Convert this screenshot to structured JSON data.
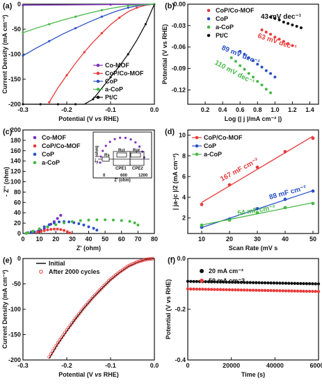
{
  "chart_data": [
    {
      "id": "a",
      "panel_label": "(a)",
      "type": "line",
      "xlabel_parts": [
        "Potential (V ",
        "vs",
        " RHE)"
      ],
      "ylabel": "Current Density (mA cm⁻²)",
      "xlim": [
        -0.3,
        0.0
      ],
      "ylim": [
        -200,
        0
      ],
      "xticks": [
        -0.3,
        -0.2,
        -0.1,
        0.0
      ],
      "xtick_labels": [
        "-0.3",
        "-0.2",
        "-0.1",
        "0.0"
      ],
      "yticks": [
        -200,
        -150,
        -100,
        -50,
        0
      ],
      "ytick_labels": [
        "-200",
        "-150",
        "-100",
        "-50",
        "0"
      ],
      "legend": [
        "Co-MOF",
        "CoP/Co-MOF",
        "CoP",
        "a-CoP",
        "Pt/C"
      ],
      "series": [
        {
          "name": "Co-MOF",
          "color": "#7b2fbf",
          "x": [
            -0.3,
            -0.2,
            -0.1,
            0.0
          ],
          "y": [
            -2,
            -1.5,
            -0.8,
            0
          ]
        },
        {
          "name": "CoP/Co-MOF",
          "color": "#e83a3a",
          "x": [
            -0.24,
            -0.22,
            -0.2,
            -0.18,
            -0.16,
            -0.14,
            -0.12,
            -0.1,
            -0.08,
            -0.06,
            -0.04,
            -0.02,
            0.0
          ],
          "y": [
            -196,
            -167,
            -142,
            -118,
            -96,
            -76,
            -58,
            -41,
            -27,
            -15,
            -7,
            -2,
            0
          ]
        },
        {
          "name": "CoP",
          "color": "#2a50c8",
          "x": [
            -0.3,
            -0.27,
            -0.24,
            -0.21,
            -0.18,
            -0.15,
            -0.12,
            -0.09,
            -0.06,
            -0.03,
            0.0
          ],
          "y": [
            -103,
            -88,
            -74,
            -60,
            -48,
            -36,
            -25,
            -15,
            -7,
            -2,
            0
          ]
        },
        {
          "name": "a-CoP",
          "color": "#45b845",
          "x": [
            -0.3,
            -0.27,
            -0.24,
            -0.21,
            -0.18,
            -0.15,
            -0.12,
            -0.09,
            -0.06,
            -0.03,
            0.0
          ],
          "y": [
            -57,
            -48,
            -40,
            -32,
            -25,
            -18,
            -12,
            -7,
            -3,
            -1,
            0
          ]
        },
        {
          "name": "Pt/C",
          "color": "#111111",
          "x": [
            -0.3,
            -0.28,
            -0.26,
            -0.24,
            -0.22,
            -0.2,
            -0.18,
            -0.16,
            -0.14,
            -0.12,
            -0.1,
            -0.08,
            -0.06,
            -0.04,
            -0.02,
            0.0
          ],
          "y": [
            -200,
            -200,
            -200,
            -200,
            -200,
            -200,
            -200,
            -200,
            -190,
            -168,
            -146,
            -124,
            -100,
            -72,
            -40,
            0
          ]
        }
      ]
    },
    {
      "id": "b",
      "panel_label": "(b)",
      "type": "scatter",
      "xlabel": "Log (| j |/mA cm⁻² |)",
      "ylabel": "Potential (V vs RHE)",
      "xlim": [
        0.0,
        1.5
      ],
      "ylim": [
        -0.14,
        0.0
      ],
      "xticks": [
        0.2,
        0.4,
        0.6,
        0.8,
        1.0,
        1.2,
        1.4
      ],
      "xtick_labels": [
        "0.2",
        "0.4",
        "0.6",
        "0.8",
        "1.0",
        "1.2",
        "1.4"
      ],
      "yticks": [
        -0.12,
        -0.09,
        -0.06,
        -0.03,
        0.0
      ],
      "ytick_labels": [
        "-0.12",
        "-0.09",
        "-0.06",
        "-0.03",
        "0.00"
      ],
      "legend": [
        "CoP/Co-MOF",
        "CoP",
        "a-CoP",
        "Pt/C"
      ],
      "annotations": [
        "43 mV dec⁻¹",
        "63 mV dec⁻¹",
        "89 mV dec⁻¹",
        "110 mV dec⁻¹"
      ],
      "series": [
        {
          "name": "CoP/Co-MOF",
          "color": "#e83a3a",
          "x": [
            0.85,
            0.9,
            0.95,
            1.0,
            1.05,
            1.1,
            1.15,
            1.2
          ],
          "y": [
            -0.036,
            -0.039,
            -0.042,
            -0.046,
            -0.049,
            -0.052,
            -0.055,
            -0.058
          ]
        },
        {
          "name": "CoP",
          "color": "#2a50c8",
          "x": [
            0.6,
            0.65,
            0.7,
            0.75,
            0.8,
            0.85,
            0.9,
            0.95,
            1.0
          ],
          "y": [
            -0.066,
            -0.07,
            -0.075,
            -0.079,
            -0.084,
            -0.088,
            -0.093,
            -0.097,
            -0.102
          ]
        },
        {
          "name": "a-CoP",
          "color": "#45b845",
          "x": [
            0.5,
            0.55,
            0.6,
            0.65,
            0.7,
            0.75,
            0.8,
            0.85,
            0.9,
            0.95
          ],
          "y": [
            -0.075,
            -0.08,
            -0.086,
            -0.091,
            -0.097,
            -0.102,
            -0.108,
            -0.113,
            -0.119,
            -0.124
          ]
        },
        {
          "name": "Pt/C",
          "color": "#111111",
          "x": [
            0.95,
            1.0,
            1.05,
            1.1,
            1.15,
            1.2,
            1.25,
            1.3
          ],
          "y": [
            -0.018,
            -0.02,
            -0.022,
            -0.025,
            -0.027,
            -0.029,
            -0.031,
            -0.033
          ]
        }
      ]
    },
    {
      "id": "c",
      "panel_label": "(c)",
      "type": "scatter",
      "xlabel": "Z' (ohm)",
      "ylabel": "- Z'' (ohm)",
      "xlim": [
        0,
        80
      ],
      "ylim": [
        0,
        200
      ],
      "xticks": [
        0,
        10,
        20,
        30,
        40,
        50,
        60,
        70,
        80
      ],
      "xtick_labels": [
        "0",
        "10",
        "20",
        "30",
        "40",
        "50",
        "60",
        "70",
        "80"
      ],
      "yticks": [
        0,
        20,
        40,
        60,
        80,
        100,
        120,
        140,
        160,
        180,
        200
      ],
      "ytick_labels": [
        "0",
        "20",
        "40",
        "60",
        "80",
        "100",
        "120",
        "140",
        "160",
        "180",
        "200"
      ],
      "legend": [
        "Co-MOF",
        "CoP/Co-MOF",
        "CoP",
        "a-CoP"
      ],
      "inset": {
        "xlabel": "Z' (ohm)",
        "ylabel": "-Z'' (ohm)",
        "xticks": [
          0,
          600,
          1200
        ],
        "xtick_labels": [
          "0",
          "600",
          "1200"
        ],
        "circuit_labels": [
          "Rs",
          "Rct",
          "Rpt",
          "CPE1",
          "CPE2"
        ]
      },
      "series": [
        {
          "name": "Co-MOF",
          "color": "#7b2fbf",
          "x": [
            2,
            3,
            5,
            7,
            9,
            11,
            13,
            15,
            17,
            19,
            21,
            23
          ],
          "y": [
            0.5,
            1.5,
            2.5,
            3,
            4,
            6,
            9,
            13,
            18,
            23,
            29,
            35
          ]
        },
        {
          "name": "CoP/Co-MOF",
          "color": "#e83a3a",
          "x": [
            2,
            3,
            5,
            7,
            9,
            11,
            13,
            15,
            17,
            19,
            21,
            23,
            25,
            27,
            28.5
          ],
          "y": [
            0.5,
            1.5,
            2.5,
            2.5,
            2.5,
            4,
            5.5,
            7,
            8,
            8.5,
            8.5,
            7.5,
            6,
            3.5,
            1
          ]
        },
        {
          "name": "CoP",
          "color": "#2a50c8",
          "x": [
            2,
            3,
            5,
            7,
            10,
            13,
            16,
            19,
            22,
            25,
            28,
            31,
            34,
            37,
            40,
            43,
            45
          ],
          "y": [
            0.5,
            1.5,
            2.5,
            3,
            8,
            13,
            17,
            20.5,
            22.5,
            23,
            22.5,
            21,
            19,
            16.5,
            13,
            10,
            6.5
          ]
        },
        {
          "name": "a-CoP",
          "color": "#45b845",
          "x": [
            2,
            3,
            6,
            10,
            15,
            20,
            25,
            30,
            35,
            40,
            45,
            50,
            55,
            60,
            65,
            68,
            70
          ],
          "y": [
            0.5,
            1.5,
            4.5,
            9,
            13,
            17,
            20.5,
            23,
            24.8,
            26,
            26.5,
            26.5,
            26,
            25,
            23.5,
            20.5,
            16.5
          ]
        }
      ]
    },
    {
      "id": "d",
      "panel_label": "(d)",
      "type": "scatter",
      "xlabel_parts": [
        "Scan Rate (mV s",
        "⁻¹",
        ")"
      ],
      "ylabel": "| ja-jc |/2 (mA cm⁻²)",
      "xlim": [
        5,
        52
      ],
      "ylim": [
        0.5,
        10.5
      ],
      "xticks": [
        10,
        20,
        30,
        40,
        50
      ],
      "xtick_labels": [
        "10",
        "20",
        "30",
        "40",
        "50"
      ],
      "yticks": [
        2,
        4,
        6,
        8,
        10
      ],
      "ytick_labels": [
        "2",
        "4",
        "6",
        "8",
        "10"
      ],
      "legend": [
        "CoP/Co-MOF",
        "CoP",
        "a-CoP"
      ],
      "annotations": [
        "167 mF cm⁻²",
        "88 mF cm⁻²",
        "54 mF cm⁻²"
      ],
      "series": [
        {
          "name": "CoP/Co-MOF",
          "color": "#e83a3a",
          "x": [
            10,
            20,
            30,
            40,
            50
          ],
          "y": [
            3.3,
            5.2,
            6.9,
            8.4,
            9.7
          ]
        },
        {
          "name": "CoP",
          "color": "#2a50c8",
          "x": [
            10,
            20,
            30,
            40,
            50
          ],
          "y": [
            1.1,
            1.9,
            2.9,
            3.8,
            4.6
          ]
        },
        {
          "name": "a-CoP",
          "color": "#45b845",
          "x": [
            10,
            20,
            30,
            40,
            50
          ],
          "y": [
            1.3,
            1.8,
            2.5,
            3.0,
            3.4
          ]
        }
      ]
    },
    {
      "id": "e",
      "panel_label": "(e)",
      "type": "line",
      "xlabel_parts": [
        "Potential (V ",
        "vs",
        " RHE)"
      ],
      "ylabel": "Current Density (mA cm⁻²)",
      "xlim": [
        -0.3,
        0.0
      ],
      "ylim": [
        -200,
        0
      ],
      "xticks": [
        -0.3,
        -0.2,
        -0.1,
        0.0
      ],
      "xtick_labels": [
        "-0.3",
        "-0.2",
        "-0.1",
        "0.0"
      ],
      "yticks": [
        -200,
        -150,
        -100,
        -50,
        0
      ],
      "ytick_labels": [
        "-200",
        "-150",
        "-100",
        "-50",
        "0"
      ],
      "legend": [
        "Initial",
        "After 2000 cycles"
      ],
      "series": [
        {
          "name": "Initial",
          "color": "#111111",
          "x": [
            -0.24,
            -0.22,
            -0.2,
            -0.18,
            -0.16,
            -0.14,
            -0.12,
            -0.1,
            -0.08,
            -0.06,
            -0.04,
            -0.02,
            0.0
          ],
          "y": [
            -197,
            -168,
            -143,
            -119,
            -97,
            -77,
            -59,
            -42,
            -28,
            -16,
            -8,
            -2,
            0
          ]
        },
        {
          "name": "After 2000 cycles",
          "color": "#e83a3a",
          "x": [
            -0.24,
            -0.22,
            -0.2,
            -0.18,
            -0.16,
            -0.14,
            -0.12,
            -0.1,
            -0.08,
            -0.06,
            -0.04,
            -0.02,
            0.0
          ],
          "y": [
            -194,
            -166,
            -141,
            -118,
            -96,
            -76,
            -58,
            -41,
            -27,
            -15,
            -7,
            -2,
            0
          ]
        }
      ]
    },
    {
      "id": "f",
      "panel_label": "(f)",
      "type": "scatter",
      "xlabel": "Time (s)",
      "ylabel": "Potential (V vs RHE)",
      "xlim": [
        0,
        60000
      ],
      "ylim": [
        -0.4,
        0.0
      ],
      "xticks": [
        0,
        20000,
        40000,
        60000
      ],
      "xtick_labels": [
        "0",
        "20000",
        "40000",
        "60000"
      ],
      "yticks": [
        -0.4,
        -0.2,
        0.0
      ],
      "ytick_labels": [
        "-0.4",
        "-0.2",
        "0.0"
      ],
      "legend": [
        "20 mA cm⁻²",
        "50 mA cm⁻2"
      ],
      "series": [
        {
          "name": "20 mA cm⁻²",
          "color": "#111111",
          "x_start": 0,
          "x_end": 60000,
          "y_start": -0.09,
          "y_end": -0.1,
          "points": 45
        },
        {
          "name": "50 mA cm⁻2",
          "color": "#e83a3a",
          "x_start": 0,
          "x_end": 60000,
          "y_start": -0.12,
          "y_end": -0.13,
          "points": 45
        }
      ]
    }
  ]
}
